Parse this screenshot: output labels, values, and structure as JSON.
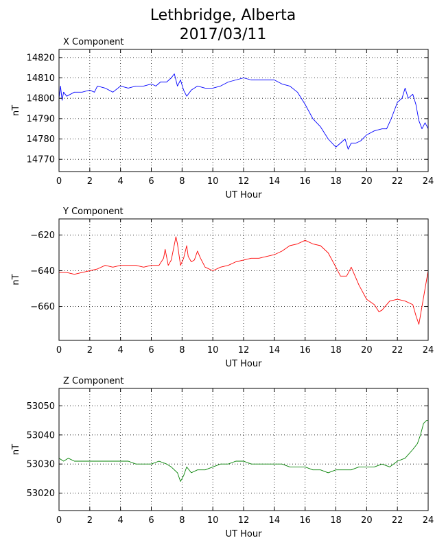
{
  "figure": {
    "title_line1": "Lethbridge, Alberta",
    "title_line2": "2017/03/11"
  },
  "chart_data": [
    {
      "type": "line",
      "title": "X Component",
      "xlabel": "UT Hour",
      "ylabel": "nT",
      "xlim": [
        0,
        24
      ],
      "ylim": [
        14764,
        14824
      ],
      "xticks": [
        0,
        2,
        4,
        6,
        8,
        10,
        12,
        14,
        16,
        18,
        20,
        22,
        24
      ],
      "yticks": [
        14770,
        14780,
        14790,
        14800,
        14810,
        14820
      ],
      "ytick_labels": [
        "14770",
        "14780",
        "14790",
        "14800",
        "14810",
        "14820"
      ],
      "grid": true,
      "color": "#0000ff",
      "series": [
        {
          "x": [
            0,
            0.1,
            0.2,
            0.3,
            0.5,
            1,
            1.5,
            2,
            2.3,
            2.5,
            3,
            3.5,
            4,
            4.5,
            5,
            5.5,
            6,
            6.3,
            6.6,
            7,
            7.3,
            7.5,
            7.7,
            7.9,
            8.1,
            8.3,
            8.6,
            9,
            9.5,
            10,
            10.5,
            11,
            11.5,
            12,
            12.5,
            13,
            13.5,
            14,
            14.5,
            15,
            15.5,
            16,
            16.5,
            17,
            17.5,
            18,
            18.3,
            18.6,
            18.8,
            19,
            19.3,
            19.6,
            20,
            20.5,
            21,
            21.3,
            21.6,
            22,
            22.3,
            22.5,
            22.7,
            23,
            23.2,
            23.4,
            23.6,
            23.8,
            24
          ],
          "y": [
            14800,
            14806,
            14799,
            14803,
            14801,
            14803,
            14803,
            14804,
            14803,
            14806,
            14805,
            14803,
            14806,
            14805,
            14806,
            14806,
            14807,
            14806,
            14808,
            14808,
            14810,
            14812,
            14806,
            14809,
            14804,
            14801,
            14804,
            14806,
            14805,
            14805,
            14806,
            14808,
            14809,
            14810,
            14809,
            14809,
            14809,
            14809,
            14807,
            14806,
            14803,
            14797,
            14790,
            14786,
            14780,
            14776,
            14778,
            14780,
            14775,
            14778,
            14778,
            14779,
            14782,
            14784,
            14785,
            14785,
            14790,
            14798,
            14800,
            14805,
            14800,
            14802,
            14797,
            14789,
            14785,
            14788,
            14785
          ]
        }
      ]
    },
    {
      "type": "line",
      "title": "Y Component",
      "xlabel": "UT Hour",
      "ylabel": "nT",
      "xlim": [
        0,
        24
      ],
      "ylim": [
        -679,
        -611
      ],
      "xticks": [
        0,
        2,
        4,
        6,
        8,
        10,
        12,
        14,
        16,
        18,
        20,
        22,
        24
      ],
      "yticks": [
        -660,
        -640,
        -620
      ],
      "ytick_labels": [
        "−660",
        "−640",
        "−620"
      ],
      "grid": true,
      "color": "#ff0000",
      "series": [
        {
          "x": [
            0,
            0.5,
            1,
            1.5,
            2,
            2.5,
            3,
            3.5,
            4,
            4.5,
            5,
            5.5,
            6,
            6.5,
            6.8,
            6.9,
            7.1,
            7.3,
            7.6,
            7.7,
            7.9,
            8.1,
            8.3,
            8.4,
            8.6,
            8.8,
            9,
            9.2,
            9.5,
            10,
            10.5,
            11,
            11.5,
            12,
            12.5,
            13,
            13.5,
            14,
            14.5,
            15,
            15.5,
            16,
            16.5,
            17,
            17.5,
            18,
            18.3,
            18.7,
            19,
            19.5,
            20,
            20.5,
            20.8,
            21,
            21.5,
            22,
            22.5,
            23,
            23.2,
            23.4,
            23.6,
            23.8,
            24
          ],
          "y": [
            -641,
            -641,
            -642,
            -641,
            -640,
            -639,
            -637,
            -638,
            -637,
            -637,
            -637,
            -638,
            -637,
            -637,
            -633,
            -628,
            -637,
            -634,
            -621,
            -625,
            -637,
            -633,
            -626,
            -632,
            -635,
            -634,
            -629,
            -633,
            -638,
            -640,
            -638,
            -637,
            -635,
            -634,
            -633,
            -633,
            -632,
            -631,
            -629,
            -626,
            -625,
            -623,
            -625,
            -626,
            -630,
            -638,
            -643,
            -643,
            -638,
            -648,
            -656,
            -659,
            -663,
            -662,
            -657,
            -656,
            -657,
            -659,
            -665,
            -670,
            -660,
            -650,
            -640
          ]
        }
      ]
    },
    {
      "type": "line",
      "title": "Z Component",
      "xlabel": "UT Hour",
      "ylabel": "nT",
      "xlim": [
        0,
        24
      ],
      "ylim": [
        53014,
        53056
      ],
      "xticks": [
        0,
        2,
        4,
        6,
        8,
        10,
        12,
        14,
        16,
        18,
        20,
        22,
        24
      ],
      "yticks": [
        53020,
        53030,
        53040,
        53050
      ],
      "ytick_labels": [
        "53020",
        "53030",
        "53040",
        "53050"
      ],
      "grid": true,
      "color": "#008000",
      "series": [
        {
          "x": [
            0,
            0.3,
            0.6,
            1,
            1.5,
            2,
            2.5,
            3,
            3.5,
            4,
            4.5,
            5,
            5.5,
            6,
            6.5,
            7,
            7.3,
            7.5,
            7.7,
            7.9,
            8.1,
            8.3,
            8.6,
            9,
            9.5,
            10,
            10.5,
            11,
            11.5,
            12,
            12.5,
            13,
            13.5,
            14,
            14.5,
            15,
            15.5,
            16,
            16.5,
            17,
            17.5,
            18,
            18.5,
            19,
            19.5,
            20,
            20.5,
            21,
            21.5,
            22,
            22.5,
            23,
            23.3,
            23.5,
            23.7,
            23.9,
            24
          ],
          "y": [
            53032,
            53031,
            53032,
            53031,
            53031,
            53031,
            53031,
            53031,
            53031,
            53031,
            53031,
            53030,
            53030,
            53030,
            53031,
            53030,
            53029,
            53028,
            53027,
            53024,
            53026,
            53029,
            53027,
            53028,
            53028,
            53029,
            53030,
            53030,
            53031,
            53031,
            53030,
            53030,
            53030,
            53030,
            53030,
            53029,
            53029,
            53029,
            53028,
            53028,
            53027,
            53028,
            53028,
            53028,
            53029,
            53029,
            53029,
            53030,
            53029,
            53031,
            53032,
            53035,
            53037,
            53040,
            53044,
            53045,
            53045
          ]
        }
      ]
    }
  ]
}
